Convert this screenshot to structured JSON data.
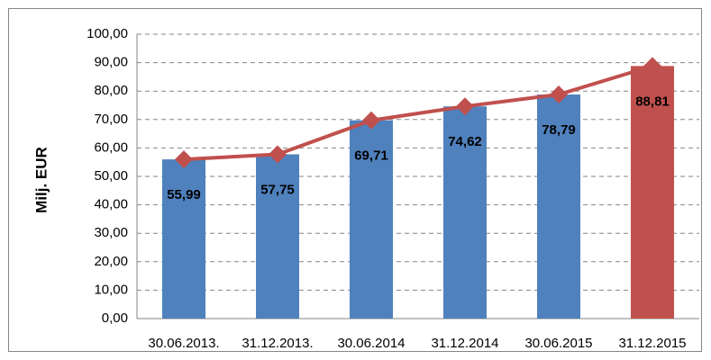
{
  "chart_data": {
    "type": "bar_line",
    "y_label": "Milj. EUR",
    "categories": [
      "30.06.2013.",
      "31.12.2013.",
      "30.06.2014",
      "31.12.2014",
      "30.06.2015",
      "31.12.2015"
    ],
    "series": [
      {
        "type": "bar",
        "colors": [
          "#4f81bd",
          "#4f81bd",
          "#4f81bd",
          "#4f81bd",
          "#4f81bd",
          "#c0504d"
        ],
        "values": [
          55.99,
          57.75,
          69.71,
          74.62,
          78.79,
          88.81
        ],
        "value_labels": [
          "55,99",
          "57,75",
          "69,71",
          "74,62",
          "78,79",
          "88,81"
        ]
      },
      {
        "type": "line",
        "color": "#c0504d",
        "values": [
          55.99,
          57.75,
          69.71,
          74.62,
          78.79,
          88.81
        ]
      }
    ],
    "ylim": [
      0,
      100
    ],
    "yticks": [
      {
        "value": 0,
        "label": "0,00"
      },
      {
        "value": 10,
        "label": "10,00"
      },
      {
        "value": 20,
        "label": "20,00"
      },
      {
        "value": 30,
        "label": "30,00"
      },
      {
        "value": 40,
        "label": "40,00"
      },
      {
        "value": 50,
        "label": "50,00"
      },
      {
        "value": 60,
        "label": "60,00"
      },
      {
        "value": 70,
        "label": "70,00"
      },
      {
        "value": 80,
        "label": "80,00"
      },
      {
        "value": 90,
        "label": "90,00"
      },
      {
        "value": 100,
        "label": "100,00"
      }
    ],
    "grid": true
  }
}
